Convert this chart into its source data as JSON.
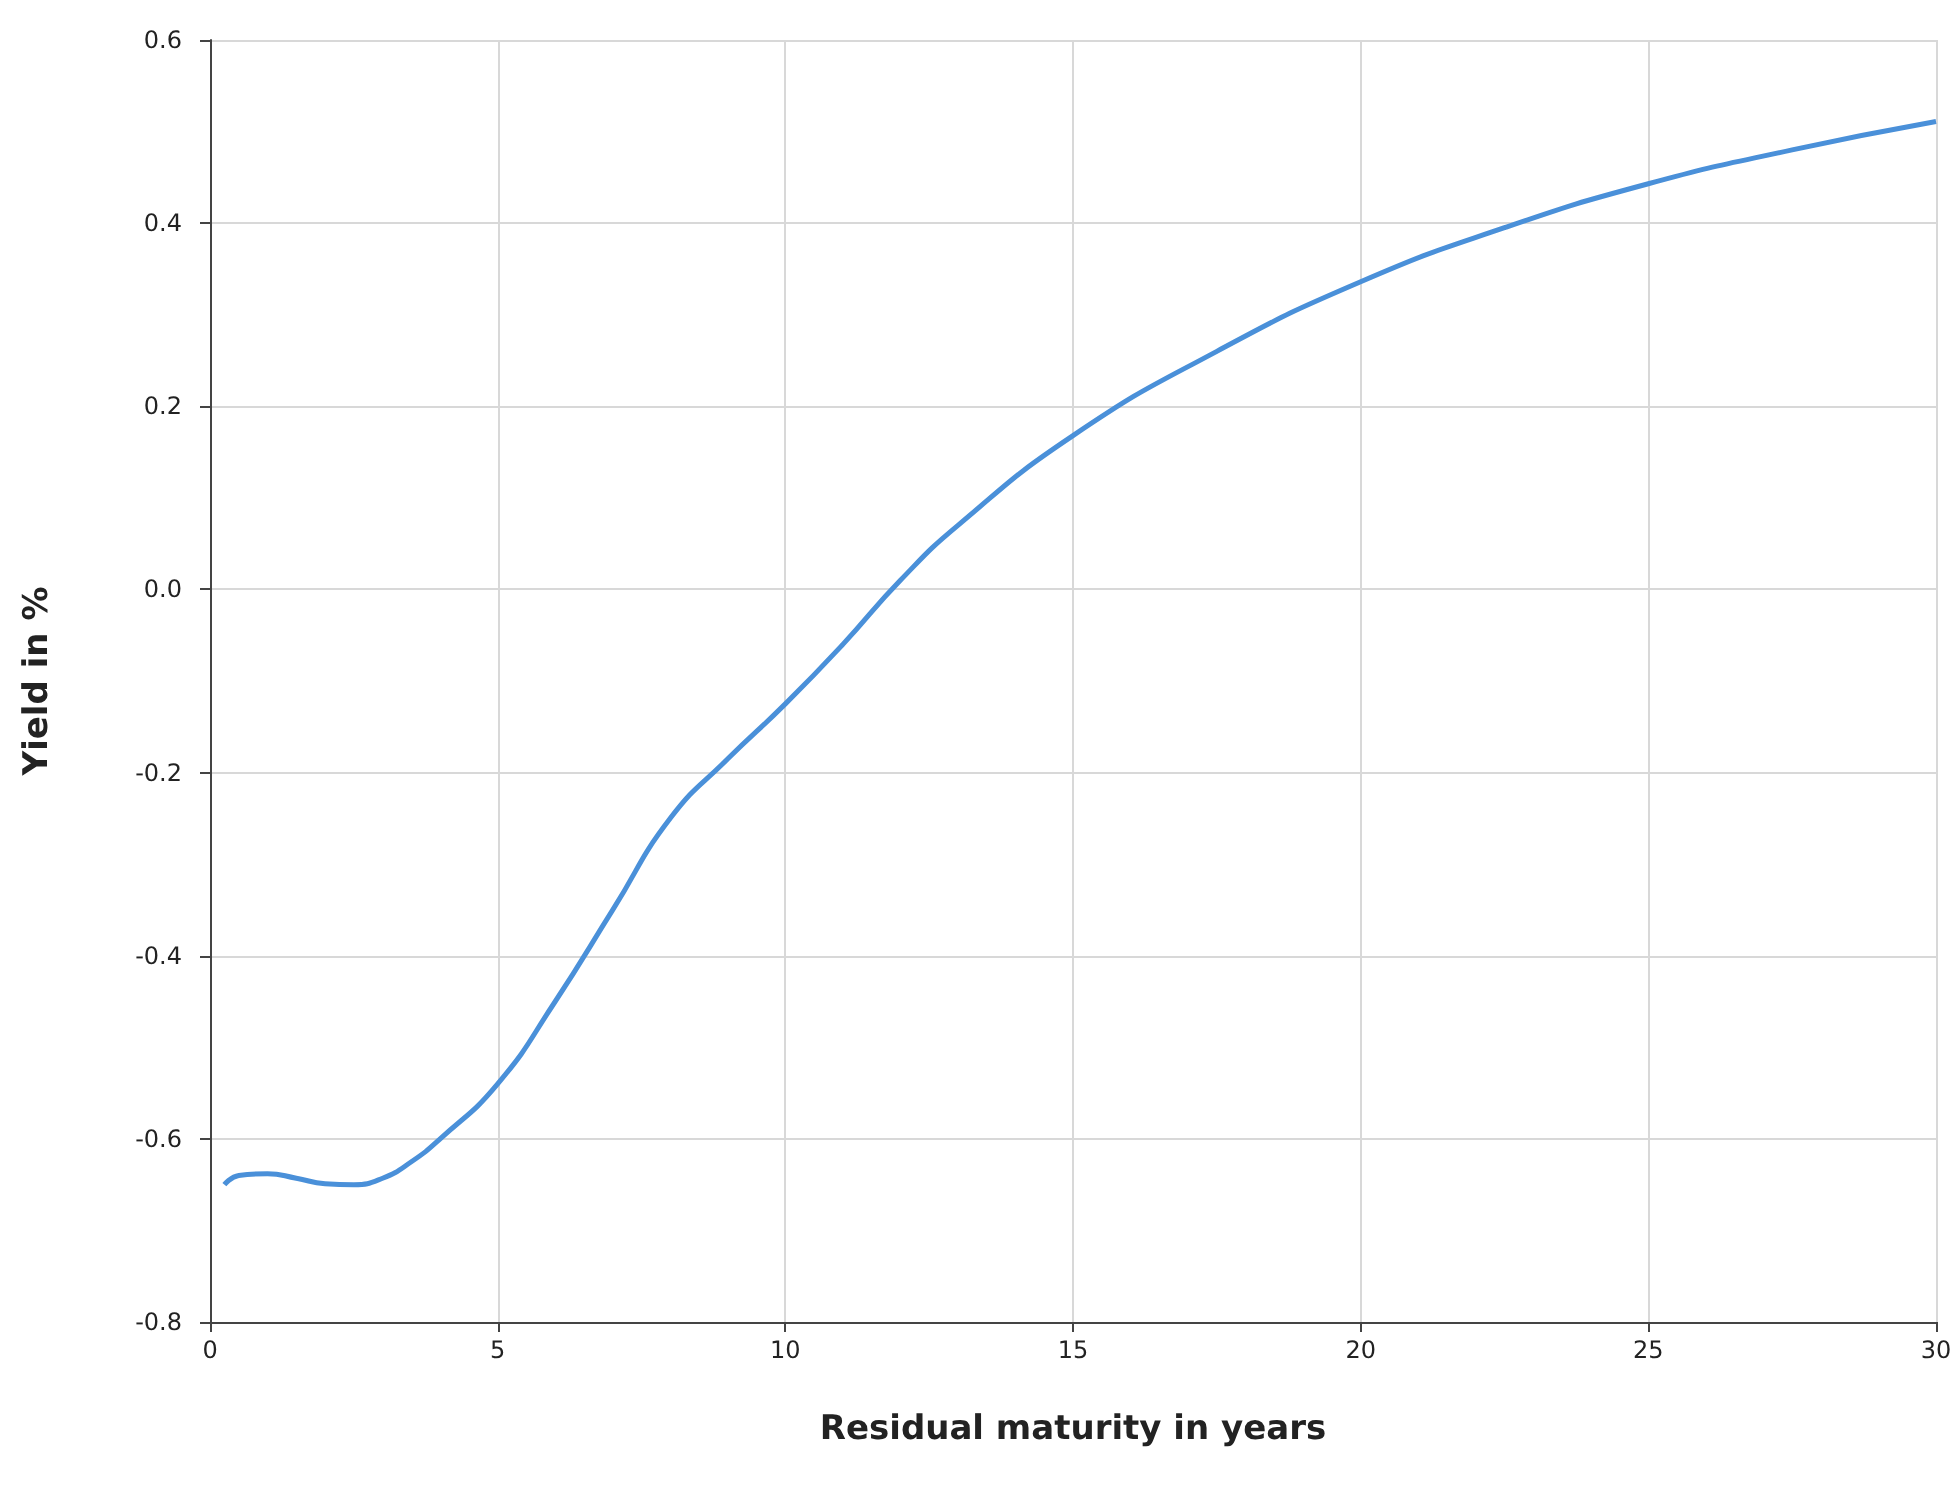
{
  "chart_data": {
    "type": "line",
    "xlabel": "Residual maturity in years",
    "ylabel": "Yield in %",
    "x": [
      0.25,
      0.5,
      1,
      1.5,
      2,
      2.5,
      3,
      3.5,
      4,
      5,
      6,
      7,
      8,
      9,
      10,
      11,
      12,
      13,
      15,
      17.5,
      20,
      22.5,
      25,
      27.5,
      30
    ],
    "series": [
      {
        "color": "#4a90d9",
        "values": [
          -0.65,
          -0.64,
          -0.638,
          -0.643,
          -0.649,
          -0.65,
          -0.643,
          -0.625,
          -0.6,
          -0.54,
          -0.45,
          -0.35,
          -0.25,
          -0.185,
          -0.125,
          -0.06,
          0.01,
          0.07,
          0.168,
          0.26,
          0.336,
          0.395,
          0.443,
          0.48,
          0.511
        ]
      }
    ],
    "xlim": [
      0,
      30
    ],
    "xticks": [
      0,
      5,
      10,
      15,
      20,
      25,
      30
    ],
    "ylim": [
      -0.8,
      0.6
    ],
    "yticks": [
      {
        "value": -0.8,
        "label": "-0.8"
      },
      {
        "value": -0.6,
        "label": "-0.6"
      },
      {
        "value": -0.4,
        "label": "-0.4"
      },
      {
        "value": -0.2,
        "label": "-0.2"
      },
      {
        "value": 0,
        "label": "0.0"
      },
      {
        "value": 0.2,
        "label": "0.2"
      },
      {
        "value": 0.4,
        "label": "0.4"
      },
      {
        "value": 0.6,
        "label": "0.6"
      }
    ],
    "grid": true,
    "marker": "none",
    "line_style": "solid"
  }
}
